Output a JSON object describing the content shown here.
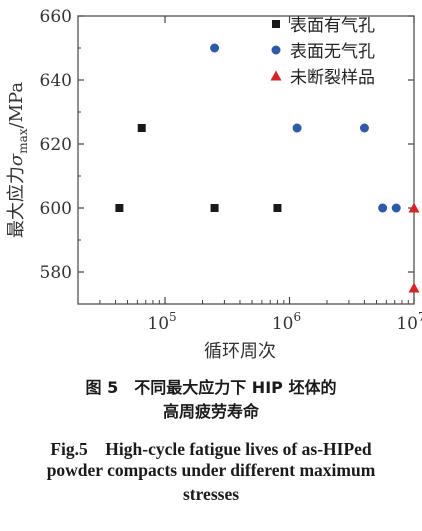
{
  "chart_data": {
    "type": "scatter",
    "xscale": "log",
    "xlim": [
      20000,
      10000000
    ],
    "ylim": [
      570,
      660
    ],
    "yticks": [
      580,
      600,
      620,
      640,
      660
    ],
    "xticks": [
      100000,
      1000000,
      10000000
    ],
    "xtick_labels": [
      {
        "base": "10",
        "exp": "5"
      },
      {
        "base": "10",
        "exp": "6"
      },
      {
        "base": "10",
        "exp": "7"
      }
    ],
    "xlabel": "循环周次",
    "ylabel": {
      "prefix": "最大应力",
      "symbol": "σ",
      "sub": "max",
      "suffix": "/MPa"
    },
    "legend_position": "top-right",
    "series": [
      {
        "name": "表面有气孔",
        "marker": "square",
        "color": "#1a1a1a",
        "points": [
          [
            43000,
            600
          ],
          [
            65000,
            625
          ],
          [
            250000,
            600
          ],
          [
            800000,
            600
          ]
        ]
      },
      {
        "name": "表面无气孔",
        "marker": "circle",
        "color": "#2f5aa8",
        "points": [
          [
            250000,
            650
          ],
          [
            1150000,
            625
          ],
          [
            4000000,
            625
          ],
          [
            5600000,
            600
          ],
          [
            7200000,
            600
          ]
        ]
      },
      {
        "name": "未断裂样品",
        "marker": "triangle",
        "color": "#d8232a",
        "points": [
          [
            10000000,
            600
          ],
          [
            10000000,
            575
          ]
        ]
      }
    ]
  },
  "caption": {
    "cn_line1": "图 5　不同最大应力下 HIP 坯体的",
    "cn_line2": "高周疲劳寿命",
    "en_line1": "Fig.5　High-cycle fatigue lives of as-HIPed",
    "en_line2": "powder compacts under different maximum",
    "en_line3": "stresses"
  }
}
